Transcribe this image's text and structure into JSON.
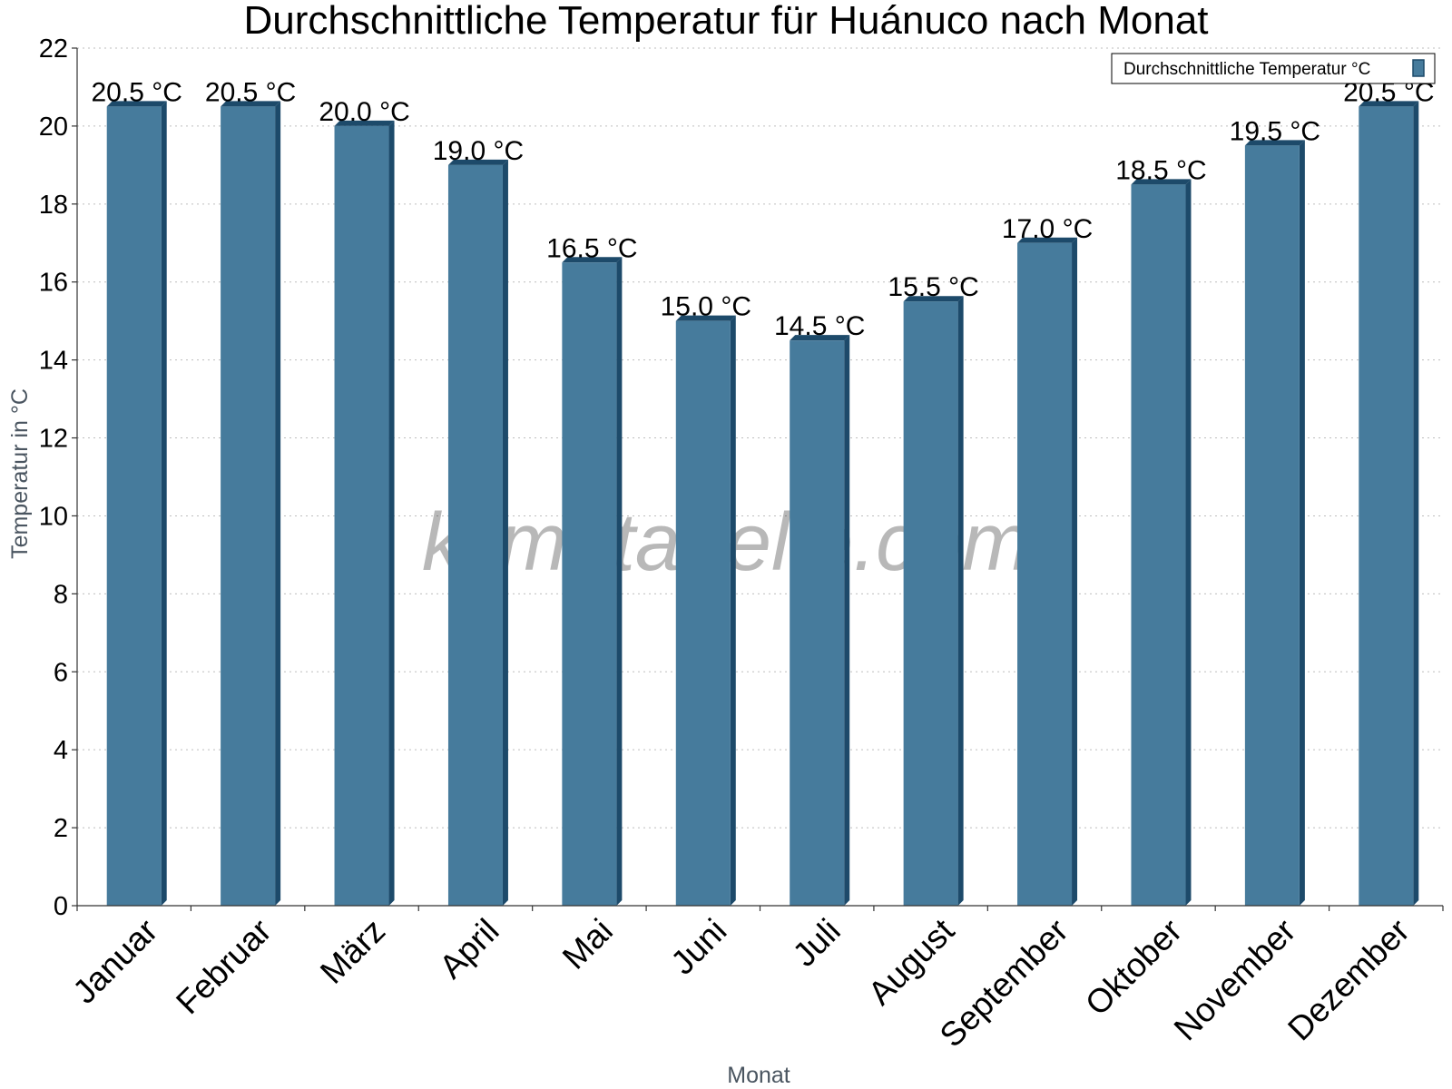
{
  "chart_data": {
    "type": "bar",
    "title": "Durchschnittliche Temperatur für Huánuco nach Monat",
    "xlabel": "Monat",
    "ylabel": "Temperatur in °C",
    "categories": [
      "Januar",
      "Februar",
      "März",
      "April",
      "Mai",
      "Juni",
      "Juli",
      "August",
      "September",
      "Oktober",
      "November",
      "Dezember"
    ],
    "series": [
      {
        "name": "Durchschnittliche Temperatur °C",
        "values": [
          20.5,
          20.5,
          20.0,
          19.0,
          16.5,
          15.0,
          14.5,
          15.5,
          17.0,
          18.5,
          19.5,
          20.5
        ],
        "data_labels": [
          "20.5 °C",
          "20.5 °C",
          "20.0 °C",
          "19.0 °C",
          "16.5 °C",
          "15.0 °C",
          "14.5 °C",
          "15.5 °C",
          "17.0 °C",
          "18.5 °C",
          "19.5 °C",
          "20.5 °C"
        ],
        "color": "#467b9c"
      }
    ],
    "ylim": [
      0,
      22
    ],
    "yticks": [
      0,
      2,
      4,
      6,
      8,
      10,
      12,
      14,
      16,
      18,
      20,
      22
    ],
    "grid": true,
    "legend_position": "top-right",
    "watermark": "klimatabelle.com"
  }
}
